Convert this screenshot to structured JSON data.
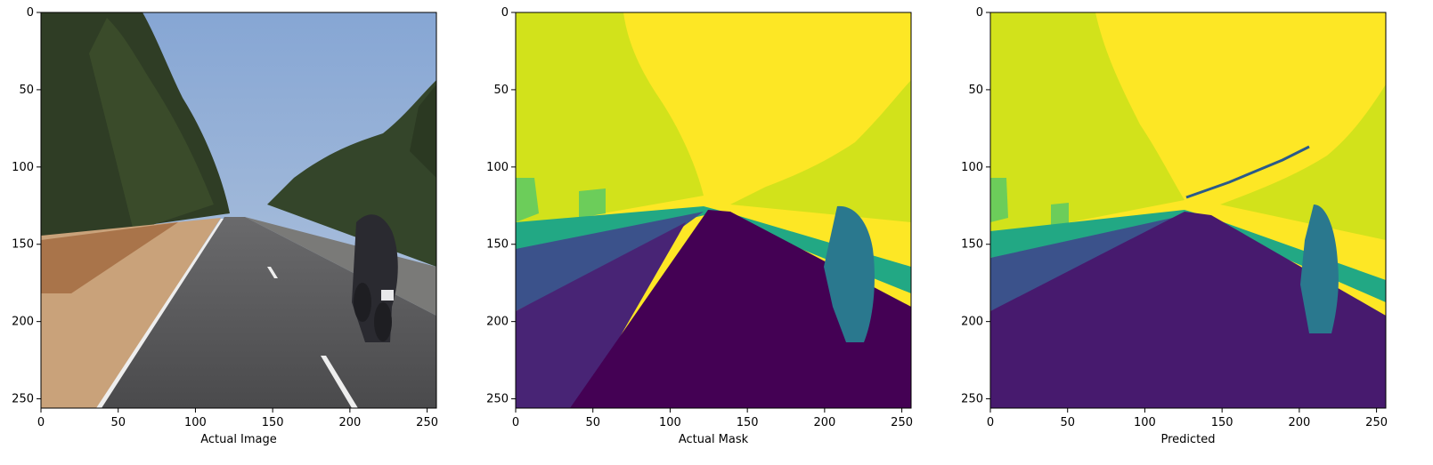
{
  "chart_data": [
    {
      "type": "image",
      "xlabel": "Actual Image",
      "ylabel": "",
      "xlim": [
        0,
        256
      ],
      "ylim": [
        256,
        0
      ],
      "xticks": [
        0,
        50,
        100,
        150,
        200,
        250
      ],
      "yticks": [
        0,
        50,
        100,
        150,
        200,
        250
      ],
      "content": "photo",
      "colors": {
        "sky": "#9cb6d8",
        "trees": "#2c3a22",
        "road": "#5a5a5a",
        "shoulder": "#c49a6e",
        "lane": "#f2f2f2",
        "rider": "#2a2a30"
      }
    },
    {
      "type": "heatmap",
      "xlabel": "Actual Mask",
      "ylabel": "",
      "xlim": [
        0,
        256
      ],
      "ylim": [
        256,
        0
      ],
      "xticks": [
        0,
        50,
        100,
        150,
        200,
        250
      ],
      "yticks": [
        0,
        50,
        100,
        150,
        200,
        250
      ],
      "colormap": "viridis",
      "colors": {
        "sky": "#fde725",
        "vegetation": "#d2e21b",
        "grass": "#6ccd5a",
        "barrier": "#22a884",
        "rider": "#2a788e",
        "sidewalk": "#3b528b",
        "shoulder": "#482475",
        "road": "#440154"
      }
    },
    {
      "type": "heatmap",
      "xlabel": "Predicted",
      "ylabel": "",
      "xlim": [
        0,
        256
      ],
      "ylim": [
        256,
        0
      ],
      "xticks": [
        0,
        50,
        100,
        150,
        200,
        250
      ],
      "yticks": [
        0,
        50,
        100,
        150,
        200,
        250
      ],
      "colormap": "viridis",
      "colors": {
        "sky": "#fde725",
        "vegetation": "#d2e21b",
        "grass": "#6ccd5a",
        "barrier": "#22a884",
        "rider": "#2a788e",
        "sidewalk": "#3b528b",
        "road": "#471a6e",
        "edge": "#2a5a8a"
      }
    }
  ]
}
